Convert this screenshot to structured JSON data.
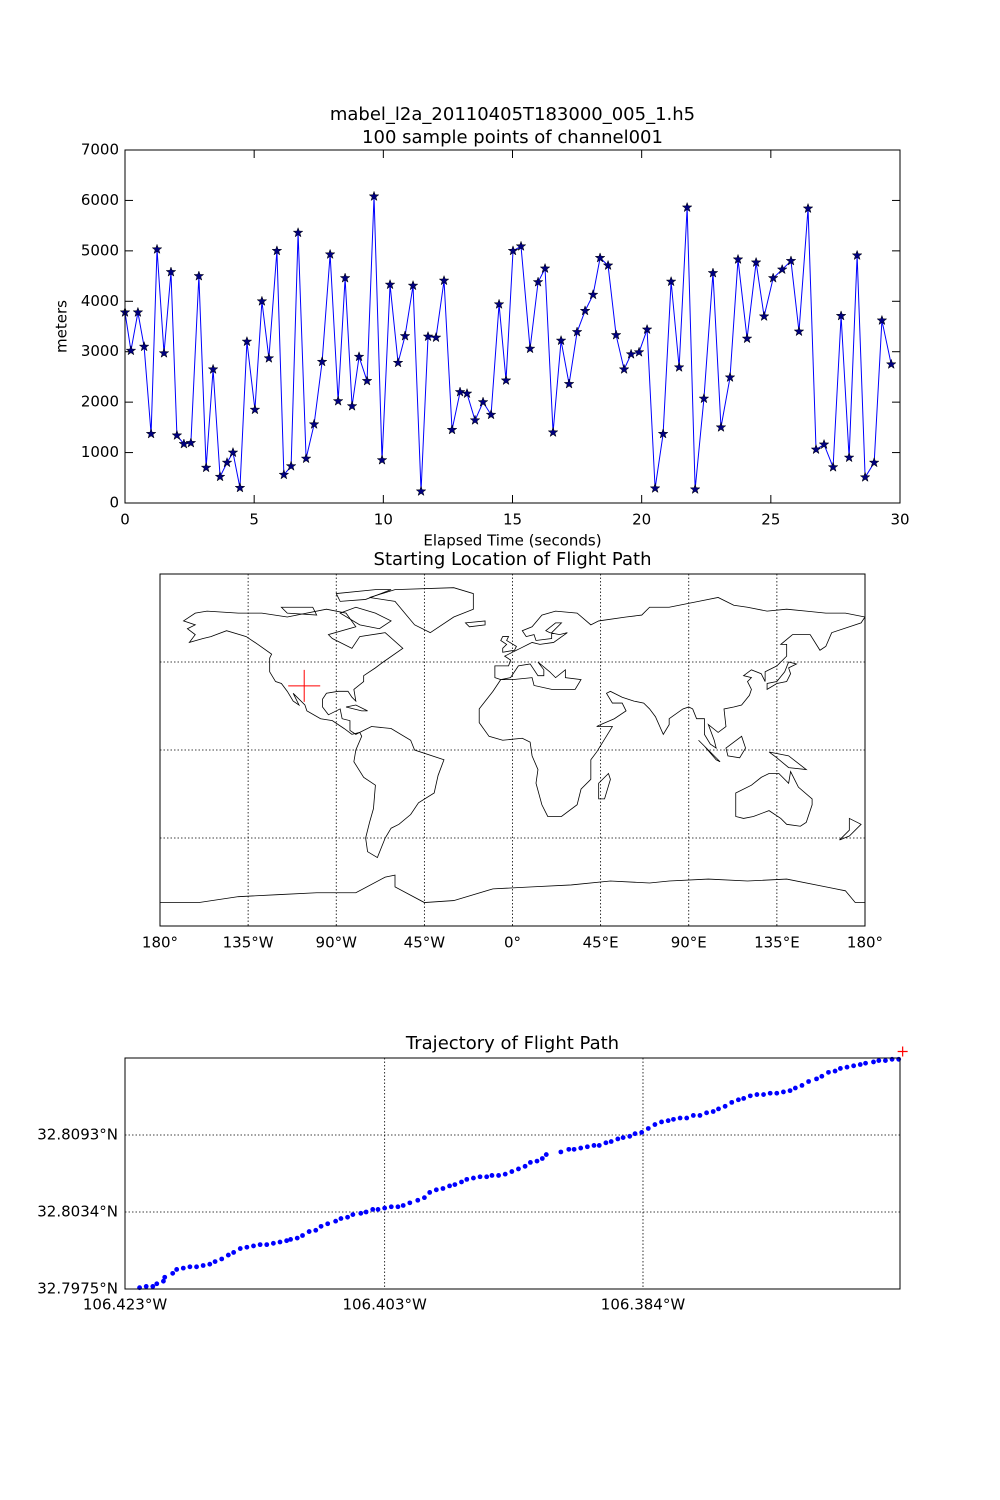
{
  "chart_data": [
    {
      "type": "line",
      "title": "mabel_l2a_20110405T183000_005_1.h5",
      "subtitle": "100 sample points of channel001",
      "xlabel": "Elapsed Time (seconds)",
      "ylabel": "meters",
      "color": "#0000ff",
      "marker_color": "#000080",
      "xlim": [
        0,
        30
      ],
      "xticks": [
        0,
        5,
        10,
        15,
        20,
        25,
        30
      ],
      "ylim": [
        0,
        7000
      ],
      "yticks": [
        0,
        1000,
        2000,
        3000,
        4000,
        5000,
        6000,
        7000
      ],
      "grid": false,
      "x": [
        0,
        0.23,
        0.5,
        0.74,
        1.01,
        1.24,
        1.51,
        1.78,
        2.01,
        2.28,
        2.55,
        2.86,
        3.14,
        3.41,
        3.68,
        3.95,
        4.18,
        4.45,
        4.72,
        5.03,
        5.3,
        5.57,
        5.88,
        6.15,
        6.43,
        6.7,
        7.01,
        7.32,
        7.63,
        7.94,
        8.25,
        8.52,
        8.79,
        9.06,
        9.37,
        9.64,
        9.95,
        10.26,
        10.57,
        10.84,
        11.15,
        11.46,
        11.73,
        12.04,
        12.35,
        12.66,
        12.97,
        13.24,
        13.55,
        13.86,
        14.17,
        14.48,
        14.75,
        15.02,
        15.33,
        15.68,
        15.99,
        16.26,
        16.57,
        16.88,
        17.19,
        17.5,
        17.81,
        18.12,
        18.39,
        18.7,
        19.01,
        19.32,
        19.59,
        19.9,
        20.21,
        20.52,
        20.83,
        21.14,
        21.45,
        21.76,
        22.07,
        22.41,
        22.76,
        23.07,
        23.42,
        23.73,
        24.08,
        24.43,
        24.74,
        25.09,
        25.44,
        25.78,
        26.09,
        26.44,
        26.75,
        27.06,
        27.41,
        27.72,
        28.03,
        28.34,
        28.65,
        29.0,
        29.3,
        29.66
      ],
      "values": [
        3780,
        3020,
        3780,
        3100,
        1370,
        5030,
        2970,
        4580,
        1340,
        1170,
        1190,
        4500,
        700,
        2650,
        520,
        800,
        1000,
        300,
        3200,
        1850,
        4000,
        2870,
        5000,
        560,
        730,
        5360,
        880,
        1560,
        2800,
        4930,
        2020,
        4460,
        1920,
        2900,
        2420,
        6080,
        850,
        4330,
        2780,
        3310,
        4310,
        230,
        3300,
        3280,
        4410,
        1450,
        2200,
        2170,
        1640,
        2000,
        1750,
        3940,
        2430,
        5000,
        5090,
        3060,
        4380,
        4650,
        1400,
        3220,
        2360,
        3390,
        3810,
        4130,
        4860,
        4710,
        3330,
        2650,
        2950,
        2990,
        3440,
        290,
        1370,
        4390,
        2690,
        5860,
        270,
        2070,
        4560,
        1500,
        2490,
        4830,
        3260,
        4770,
        3700,
        4460,
        4630,
        4800,
        3400,
        5840,
        1060,
        1160,
        710,
        3710,
        900,
        4910,
        510,
        800,
        3620,
        2750
      ]
    },
    {
      "type": "map",
      "title": "Starting Location of Flight Path",
      "xlim": [
        -180,
        180
      ],
      "ylim": [
        -90,
        90
      ],
      "xticks": [
        {
          "value": -180,
          "label": "180°"
        },
        {
          "value": -135,
          "label": "135°W"
        },
        {
          "value": -90,
          "label": "90°W"
        },
        {
          "value": -45,
          "label": "45°W"
        },
        {
          "value": 0,
          "label": "0°"
        },
        {
          "value": 45,
          "label": "45°E"
        },
        {
          "value": 90,
          "label": "90°E"
        },
        {
          "value": 135,
          "label": "135°E"
        },
        {
          "value": 180,
          "label": "180°"
        }
      ],
      "parallels": [
        -45,
        0,
        45
      ],
      "grid": true,
      "marker": {
        "x": -106.3643,
        "y": 32.8157,
        "color": "#ff0000"
      }
    },
    {
      "type": "scatter",
      "title": "Trajectory of Flight Path",
      "color": "#0000ff",
      "xlim": [
        -106.423,
        -106.3645
      ],
      "xticks": [
        {
          "value": -106.423,
          "label": "106.423°W"
        },
        {
          "value": -106.4034,
          "label": "106.403°W"
        },
        {
          "value": -106.3839,
          "label": "106.384°W"
        }
      ],
      "ylim": [
        32.7975,
        32.8152
      ],
      "yticks": [
        {
          "value": 32.7975,
          "label": "32.7975°N"
        },
        {
          "value": 32.8034,
          "label": "32.8034°N"
        },
        {
          "value": 32.8093,
          "label": "32.8093°N"
        }
      ],
      "grid": true,
      "x": [
        -106.4219,
        -106.4214,
        -106.4209,
        -106.4206,
        -106.4201,
        -106.42,
        -106.4194,
        -106.4191,
        -106.4186,
        -106.4181,
        -106.4176,
        -106.4171,
        -106.4166,
        -106.4162,
        -106.4157,
        -106.4152,
        -106.4148,
        -106.4143,
        -106.4138,
        -106.4133,
        -106.4128,
        -106.4123,
        -106.4118,
        -106.4113,
        -106.4108,
        -106.4105,
        -106.41,
        -106.4096,
        -106.4091,
        -106.4086,
        -106.4082,
        -106.4077,
        -106.4071,
        -106.4067,
        -106.4062,
        -106.4058,
        -106.4052,
        -106.4048,
        -106.4043,
        -106.4039,
        -106.4034,
        -106.4029,
        -106.4024,
        -106.402,
        -106.4015,
        -106.4009,
        -106.4004,
        -106.4,
        -106.3995,
        -106.399,
        -106.3985,
        -106.3981,
        -106.3976,
        -106.3972,
        -106.3967,
        -106.3962,
        -106.3957,
        -106.3953,
        -106.3948,
        -106.3943,
        -106.3938,
        -106.3933,
        -106.3928,
        -106.3924,
        -106.3919,
        -106.3915,
        -106.3912,
        -106.3901,
        -106.3895,
        -106.3891,
        -106.3886,
        -106.3881,
        -106.3876,
        -106.3872,
        -106.3867,
        -106.3863,
        -106.3858,
        -106.3854,
        -106.3849,
        -106.3845,
        -106.384,
        -106.3835,
        -106.383,
        -106.3825,
        -106.382,
        -106.3816,
        -106.3811,
        -106.3806,
        -106.3801,
        -106.3796,
        -106.3791,
        -106.3786,
        -106.3782,
        -106.3777,
        -106.3772,
        -106.3767,
        -106.3763,
        -106.3758,
        -106.3753,
        -106.3748,
        -106.3743,
        -106.3738,
        -106.3733,
        -106.3728,
        -106.3724,
        -106.3719,
        -106.3714,
        -106.3708,
        -106.3704,
        -106.3699,
        -106.3694,
        -106.369,
        -106.3685,
        -106.368,
        -106.3675,
        -106.3671,
        -106.3665,
        -106.3661,
        -106.3656,
        -106.3651,
        -106.3646
      ],
      "values": [
        32.7976,
        32.7977,
        32.7977,
        32.7979,
        32.7981,
        32.7984,
        32.7987,
        32.799,
        32.7991,
        32.7992,
        32.7992,
        32.7993,
        32.7994,
        32.7996,
        32.7998,
        32.8001,
        32.8003,
        32.8006,
        32.8007,
        32.8008,
        32.8009,
        32.8009,
        32.801,
        32.8011,
        32.8012,
        32.8013,
        32.8014,
        32.8016,
        32.8019,
        32.802,
        32.8023,
        32.8025,
        32.8027,
        32.8029,
        32.803,
        32.8032,
        32.8033,
        32.8034,
        32.8036,
        32.8036,
        32.8037,
        32.8038,
        32.8038,
        32.8039,
        32.8041,
        32.8043,
        32.8045,
        32.8049,
        32.8051,
        32.8052,
        32.8054,
        32.8055,
        32.8057,
        32.8059,
        32.806,
        32.8061,
        32.8061,
        32.8062,
        32.8062,
        32.8063,
        32.8065,
        32.8067,
        32.8069,
        32.8072,
        32.8073,
        32.8075,
        32.8078,
        32.808,
        32.8082,
        32.8082,
        32.8083,
        32.8084,
        32.8085,
        32.8085,
        32.8087,
        32.8088,
        32.809,
        32.8091,
        32.8092,
        32.8094,
        32.8095,
        32.8098,
        32.8101,
        32.8103,
        32.8104,
        32.8105,
        32.8106,
        32.8106,
        32.8108,
        32.8108,
        32.811,
        32.8111,
        32.8113,
        32.8115,
        32.8118,
        32.812,
        32.8121,
        32.8123,
        32.8124,
        32.8124,
        32.8125,
        32.8125,
        32.8126,
        32.8127,
        32.8129,
        32.8131,
        32.8134,
        32.8136,
        32.8138,
        32.8141,
        32.8142,
        32.8144,
        32.8145,
        32.8146,
        32.8147,
        32.8148,
        32.8149,
        32.815,
        32.815,
        32.8151,
        32.8151
      ],
      "marker": {
        "x": -106.3643,
        "y": 32.8157,
        "color": "#ff0000"
      }
    }
  ]
}
